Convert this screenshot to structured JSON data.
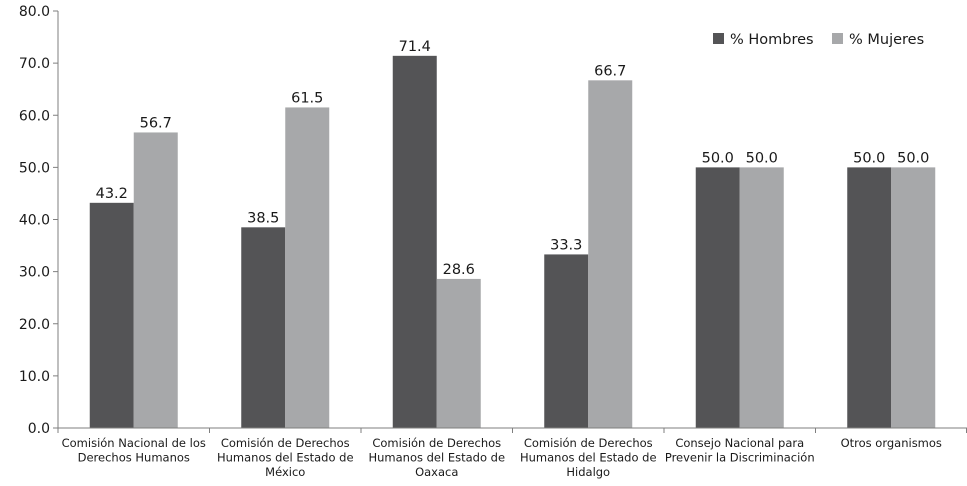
{
  "chart_data": {
    "type": "bar",
    "title": "",
    "xlabel": "",
    "ylabel": "",
    "ylim": [
      0,
      80
    ],
    "yticks": [
      "0.0",
      "10.0",
      "20.0",
      "30.0",
      "40.0",
      "50.0",
      "60.0",
      "70.0",
      "80.0"
    ],
    "grid": false,
    "legend_position": "top-right",
    "categories": [
      [
        "Comisión Nacional de los",
        "Derechos Humanos"
      ],
      [
        "Comisión de Derechos",
        "Humanos del Estado de",
        "México"
      ],
      [
        "Comisión de Derechos",
        "Humanos del Estado de",
        "Oaxaca"
      ],
      [
        "Comisión de Derechos",
        "Humanos del Estado de",
        "Hidalgo"
      ],
      [
        "Consejo Nacional para",
        "Prevenir la Discriminación"
      ],
      [
        "Otros organismos"
      ]
    ],
    "series": [
      {
        "name": "% Hombres",
        "color": "#545456",
        "values": [
          43.2,
          38.5,
          71.4,
          33.3,
          50.0,
          50.0
        ]
      },
      {
        "name": "% Mujeres",
        "color": "#a7a8aa",
        "values": [
          56.7,
          61.5,
          28.6,
          66.7,
          50.0,
          50.0
        ]
      }
    ],
    "data_labels": true,
    "axis_color": "#7f7f7f"
  }
}
